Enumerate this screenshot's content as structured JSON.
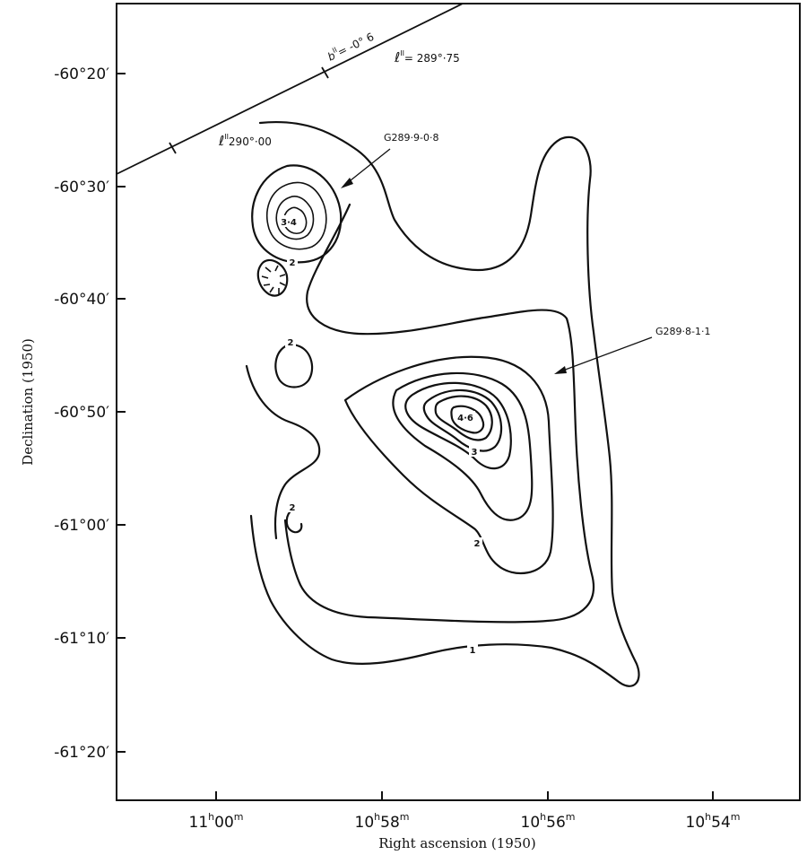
{
  "axes": {
    "y_title": "Declination (1950)",
    "x_title": "Right ascension (1950)",
    "y_ticks": [
      {
        "text": "-60°20′"
      },
      {
        "text": "-60°30′"
      },
      {
        "text": "-60°40′"
      },
      {
        "text": "-60°50′"
      },
      {
        "text": "-61°00′"
      },
      {
        "text": "-61°10′"
      },
      {
        "text": "-61°20′"
      }
    ],
    "x_ticks": [
      {
        "h": "11",
        "m": "00"
      },
      {
        "h": "10",
        "m": "58"
      },
      {
        "h": "10",
        "m": "56"
      },
      {
        "h": "10",
        "m": "54"
      }
    ]
  },
  "galactic_line": {
    "b_label": "b",
    "b_sup": "II",
    "b_value": "= -0° 6",
    "l1_label": "ℓ",
    "l1_sup": "II",
    "l1_value": "= 289°·75",
    "l2_label": "ℓ",
    "l2_sup": "II",
    "l2_value": "290°·00"
  },
  "sources": {
    "north": "G289·9-0·8",
    "south": "G289·8-1·1"
  },
  "contour_labels": {
    "peak_north": "3·4",
    "peak_south": "4·6",
    "level_3": "3",
    "level_2_a": "2",
    "level_2_b": "2",
    "level_2_c": "2",
    "level_2_d": "2",
    "level_1": "1"
  }
}
